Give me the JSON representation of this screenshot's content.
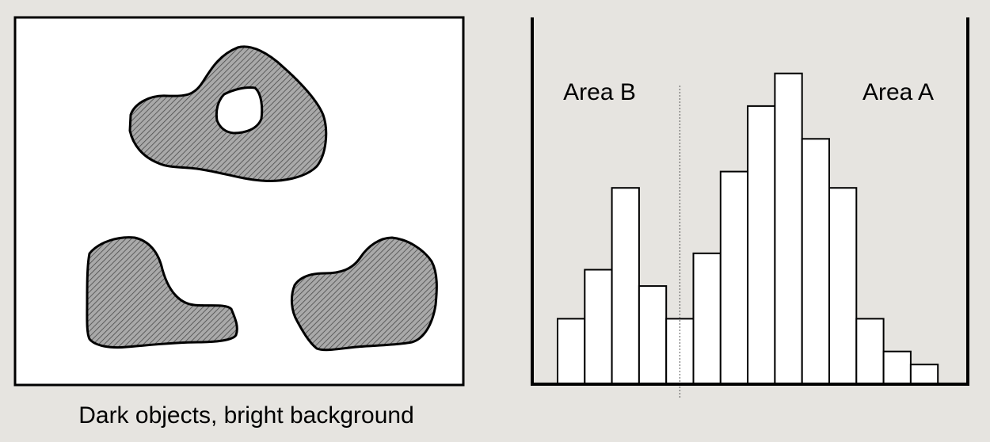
{
  "left_panel": {
    "caption": "Dark objects, bright background",
    "background_color": "#ffffff",
    "object_fill": "#a9a9a9",
    "object_hatch_color": "#4a4a4a",
    "objects": [
      "top-blob-with-hole",
      "bottom-left-blob",
      "bottom-right-blob"
    ]
  },
  "histogram": {
    "area_b_label": "Area B",
    "area_a_label": "Area A",
    "bar_fill": "#ffffff",
    "bar_stroke": "#000000",
    "threshold_after_bar": 4,
    "chart_data": {
      "type": "bar",
      "values": [
        2,
        3.5,
        6,
        3,
        2,
        4,
        6.5,
        8.5,
        9.5,
        7.5,
        6,
        2,
        1,
        0.6
      ],
      "ylim": [
        0,
        10
      ],
      "grid": false
    }
  },
  "colors": {
    "page_background": "#e6e4e0",
    "outline": "#000000"
  }
}
